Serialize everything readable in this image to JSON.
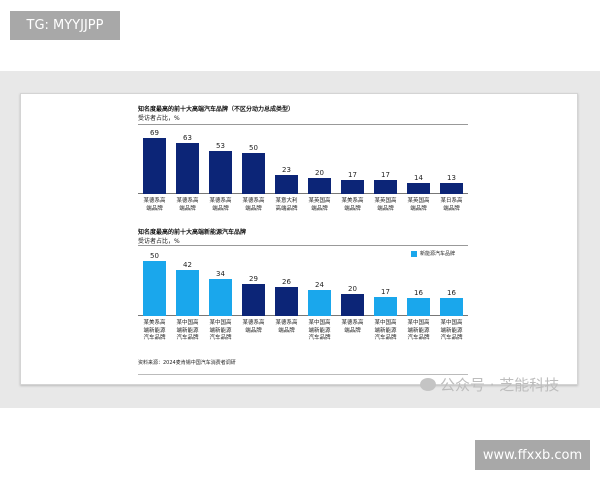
{
  "watermarks": {
    "tg": "TG: MYYJJPP",
    "site": "www.ffxxb.com",
    "wechat": "公众号 · 芝能科技"
  },
  "colors": {
    "premium": "#0c2577",
    "nev": "#1aa7ec"
  },
  "chart_data": [
    {
      "type": "bar",
      "title": "知名度最高的前十大高端汽车品牌（不区分动力总成类型）",
      "subtitle": "受访者占比，%",
      "categories": [
        "某德系高端品牌",
        "某德系高端品牌",
        "某德系高端品牌",
        "某德系高端品牌",
        "某意大利高端品牌",
        "某英国高端品牌",
        "某美系高端品牌",
        "某英国高端品牌",
        "某英国高端品牌",
        "某日系高端品牌"
      ],
      "values": [
        69,
        63,
        53,
        50,
        23,
        20,
        17,
        17,
        14,
        13
      ],
      "colors": [
        "#0c2577",
        "#0c2577",
        "#0c2577",
        "#0c2577",
        "#0c2577",
        "#0c2577",
        "#0c2577",
        "#0c2577",
        "#0c2577",
        "#0c2577"
      ],
      "ylim": [
        0,
        75
      ]
    },
    {
      "type": "bar",
      "title": "知名度最高的前十大高端新能源汽车品牌",
      "subtitle": "受访者占比，%",
      "legend": "新能源汽车品牌",
      "legend_position": "top-right",
      "categories": [
        "某美系高端新能源汽车品牌",
        "某中国高端新能源汽车品牌",
        "某中国高端新能源汽车品牌",
        "某德系高端品牌",
        "某德系高端品牌",
        "某中国高端新能源汽车品牌",
        "某德系高端品牌",
        "某中国高端新能源汽车品牌",
        "某中国高端新能源汽车品牌",
        "某中国高端新能源汽车品牌"
      ],
      "values": [
        50,
        42,
        34,
        29,
        26,
        24,
        20,
        17,
        16,
        16
      ],
      "colors": [
        "#1aa7ec",
        "#1aa7ec",
        "#1aa7ec",
        "#0c2577",
        "#0c2577",
        "#1aa7ec",
        "#0c2577",
        "#1aa7ec",
        "#1aa7ec",
        "#1aa7ec"
      ],
      "ylim": [
        0,
        55
      ]
    }
  ],
  "source": "资料来源：2024麦肯锡中国汽车消费者调研"
}
